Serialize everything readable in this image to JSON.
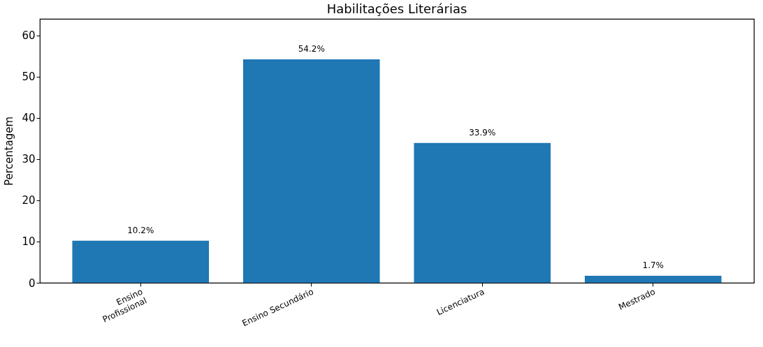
{
  "chart_data": {
    "type": "bar",
    "title": "Habilitações Literárias",
    "ylabel": "Percentagem",
    "categories": [
      "Ensino\nProfissional",
      "Ensino Secundário",
      "Licenciatura",
      "Mestrado"
    ],
    "values": [
      10.2,
      54.2,
      33.9,
      1.7
    ],
    "value_labels": [
      "10.2%",
      "54.2%",
      "33.9%",
      "1.7%"
    ],
    "color": "#1f77b4",
    "ylim": [
      0,
      64
    ],
    "yticks": [
      0,
      10,
      20,
      30,
      40,
      50,
      60
    ],
    "grid": false
  }
}
